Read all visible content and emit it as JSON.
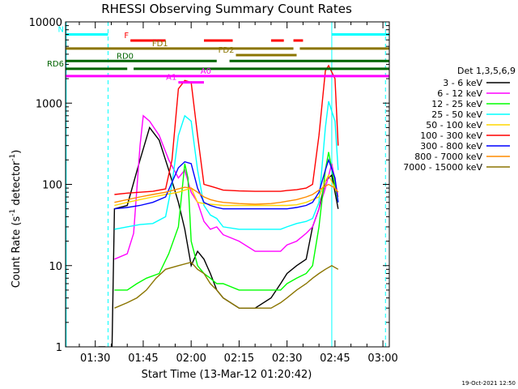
{
  "chart_data": {
    "type": "line",
    "title": "RHESSI Observing Summary Count Rates",
    "xlabel": "Start Time (13-Mar-12 01:20:42)",
    "ylabel_main": "Count Rate (s",
    "ylabel_sup1": "-1",
    "ylabel_mid": " detector",
    "ylabel_sup2": "-1",
    "ylabel_end": ")",
    "yscale": "log",
    "ylim": [
      1,
      10000
    ],
    "xlim_minutes": [
      80.7,
      182
    ],
    "y_ticks": [
      {
        "value": 1,
        "label": "1"
      },
      {
        "value": 10,
        "label": "10"
      },
      {
        "value": 100,
        "label": "100"
      },
      {
        "value": 1000,
        "label": "1000"
      },
      {
        "value": 10000,
        "label": "10000"
      }
    ],
    "x_ticks": [
      {
        "minute": 90,
        "label": "01:30"
      },
      {
        "minute": 105,
        "label": "01:45"
      },
      {
        "minute": 120,
        "label": "02:00"
      },
      {
        "minute": 135,
        "label": "02:15"
      },
      {
        "minute": 150,
        "label": "02:30"
      },
      {
        "minute": 165,
        "label": "02:45"
      },
      {
        "minute": 180,
        "label": "03:00"
      }
    ],
    "legend_title": "Det 1,3,5,6,9",
    "legend_position": "right",
    "series": [
      {
        "name": "3 - 6 keV",
        "color": "#000000",
        "points": [
          [
            91,
            1
          ],
          [
            93,
            1
          ],
          [
            95,
            0.3
          ],
          [
            96,
            50
          ],
          [
            100,
            55
          ],
          [
            104,
            200
          ],
          [
            107,
            500
          ],
          [
            110,
            350
          ],
          [
            113,
            150
          ],
          [
            116,
            60
          ],
          [
            118,
            28
          ],
          [
            120,
            10
          ],
          [
            122,
            15
          ],
          [
            124,
            12
          ],
          [
            126,
            8
          ],
          [
            128,
            5
          ],
          [
            130,
            4
          ],
          [
            135,
            3
          ],
          [
            140,
            3
          ],
          [
            145,
            4
          ],
          [
            148,
            6
          ],
          [
            150,
            8
          ],
          [
            153,
            10
          ],
          [
            156,
            12
          ],
          [
            158,
            30
          ],
          [
            160,
            50
          ],
          [
            162,
            110
          ],
          [
            164,
            130
          ],
          [
            166,
            50
          ]
        ]
      },
      {
        "name": "6 - 12 keV",
        "color": "#ff00ff",
        "points": [
          [
            96,
            12
          ],
          [
            100,
            14
          ],
          [
            102,
            25
          ],
          [
            104,
            300
          ],
          [
            105,
            700
          ],
          [
            107,
            600
          ],
          [
            110,
            400
          ],
          [
            113,
            200
          ],
          [
            116,
            120
          ],
          [
            118,
            150
          ],
          [
            120,
            80
          ],
          [
            122,
            60
          ],
          [
            124,
            35
          ],
          [
            126,
            28
          ],
          [
            128,
            30
          ],
          [
            130,
            24
          ],
          [
            135,
            20
          ],
          [
            140,
            15
          ],
          [
            145,
            15
          ],
          [
            148,
            15
          ],
          [
            150,
            18
          ],
          [
            153,
            20
          ],
          [
            156,
            25
          ],
          [
            158,
            30
          ],
          [
            160,
            50
          ],
          [
            162,
            90
          ],
          [
            164,
            180
          ],
          [
            166,
            70
          ]
        ]
      },
      {
        "name": "12 - 25 keV",
        "color": "#00ff00",
        "points": [
          [
            96,
            5
          ],
          [
            100,
            5
          ],
          [
            103,
            6
          ],
          [
            106,
            7
          ],
          [
            110,
            8
          ],
          [
            113,
            14
          ],
          [
            116,
            30
          ],
          [
            118,
            180
          ],
          [
            119,
            120
          ],
          [
            120,
            20
          ],
          [
            122,
            10
          ],
          [
            124,
            8
          ],
          [
            126,
            7
          ],
          [
            128,
            6
          ],
          [
            130,
            6
          ],
          [
            135,
            5
          ],
          [
            140,
            5
          ],
          [
            145,
            5
          ],
          [
            148,
            5
          ],
          [
            150,
            6
          ],
          [
            153,
            7
          ],
          [
            156,
            8
          ],
          [
            158,
            10
          ],
          [
            160,
            30
          ],
          [
            162,
            150
          ],
          [
            163,
            250
          ],
          [
            166,
            60
          ]
        ]
      },
      {
        "name": "25 - 50 keV",
        "color": "#00ffff",
        "points": [
          [
            96,
            28
          ],
          [
            100,
            30
          ],
          [
            104,
            32
          ],
          [
            108,
            33
          ],
          [
            112,
            40
          ],
          [
            114,
            100
          ],
          [
            116,
            400
          ],
          [
            118,
            700
          ],
          [
            120,
            600
          ],
          [
            122,
            150
          ],
          [
            124,
            55
          ],
          [
            126,
            42
          ],
          [
            128,
            38
          ],
          [
            130,
            30
          ],
          [
            135,
            28
          ],
          [
            140,
            28
          ],
          [
            145,
            28
          ],
          [
            148,
            28
          ],
          [
            150,
            30
          ],
          [
            153,
            33
          ],
          [
            156,
            35
          ],
          [
            158,
            38
          ],
          [
            160,
            60
          ],
          [
            162,
            500
          ],
          [
            163,
            1050
          ],
          [
            165,
            600
          ],
          [
            166,
            150
          ]
        ]
      },
      {
        "name": "50 - 100 keV",
        "color": "#ffd700",
        "points": [
          [
            96,
            55
          ],
          [
            100,
            60
          ],
          [
            104,
            65
          ],
          [
            108,
            70
          ],
          [
            112,
            75
          ],
          [
            116,
            80
          ],
          [
            118,
            85
          ],
          [
            120,
            90
          ],
          [
            122,
            60
          ],
          [
            124,
            58
          ],
          [
            126,
            57
          ],
          [
            128,
            56
          ],
          [
            130,
            55
          ],
          [
            135,
            55
          ],
          [
            140,
            55
          ],
          [
            145,
            55
          ],
          [
            148,
            55
          ],
          [
            150,
            55
          ],
          [
            153,
            56
          ],
          [
            156,
            60
          ],
          [
            158,
            65
          ],
          [
            160,
            70
          ],
          [
            162,
            110
          ],
          [
            163,
            130
          ],
          [
            165,
            90
          ],
          [
            166,
            70
          ]
        ]
      },
      {
        "name": "100 - 300 keV",
        "color": "#ff0000",
        "points": [
          [
            96,
            75
          ],
          [
            100,
            78
          ],
          [
            104,
            80
          ],
          [
            108,
            82
          ],
          [
            112,
            88
          ],
          [
            114,
            200
          ],
          [
            116,
            1500
          ],
          [
            118,
            1900
          ],
          [
            120,
            1800
          ],
          [
            122,
            400
          ],
          [
            124,
            100
          ],
          [
            126,
            95
          ],
          [
            128,
            90
          ],
          [
            130,
            85
          ],
          [
            135,
            83
          ],
          [
            140,
            82
          ],
          [
            145,
            82
          ],
          [
            148,
            82
          ],
          [
            150,
            84
          ],
          [
            153,
            86
          ],
          [
            156,
            90
          ],
          [
            158,
            100
          ],
          [
            160,
            400
          ],
          [
            162,
            2500
          ],
          [
            163,
            2900
          ],
          [
            165,
            2000
          ],
          [
            166,
            300
          ]
        ]
      },
      {
        "name": "300 - 800 keV",
        "color": "#0000ff",
        "points": [
          [
            96,
            50
          ],
          [
            100,
            52
          ],
          [
            104,
            55
          ],
          [
            108,
            60
          ],
          [
            112,
            70
          ],
          [
            116,
            160
          ],
          [
            118,
            190
          ],
          [
            120,
            180
          ],
          [
            122,
            90
          ],
          [
            124,
            60
          ],
          [
            126,
            55
          ],
          [
            128,
            52
          ],
          [
            130,
            50
          ],
          [
            135,
            50
          ],
          [
            140,
            50
          ],
          [
            145,
            50
          ],
          [
            148,
            50
          ],
          [
            150,
            50
          ],
          [
            153,
            52
          ],
          [
            156,
            55
          ],
          [
            158,
            60
          ],
          [
            160,
            80
          ],
          [
            162,
            150
          ],
          [
            163,
            200
          ],
          [
            165,
            120
          ],
          [
            166,
            60
          ]
        ]
      },
      {
        "name": "800 - 7000 keV",
        "color": "#ff8c00",
        "points": [
          [
            96,
            60
          ],
          [
            100,
            65
          ],
          [
            104,
            70
          ],
          [
            108,
            75
          ],
          [
            112,
            80
          ],
          [
            116,
            88
          ],
          [
            118,
            92
          ],
          [
            120,
            90
          ],
          [
            122,
            80
          ],
          [
            124,
            70
          ],
          [
            126,
            65
          ],
          [
            128,
            62
          ],
          [
            130,
            60
          ],
          [
            135,
            58
          ],
          [
            140,
            57
          ],
          [
            145,
            58
          ],
          [
            148,
            60
          ],
          [
            150,
            62
          ],
          [
            153,
            65
          ],
          [
            156,
            70
          ],
          [
            158,
            75
          ],
          [
            160,
            85
          ],
          [
            162,
            95
          ],
          [
            163,
            100
          ],
          [
            165,
            90
          ],
          [
            166,
            80
          ]
        ]
      },
      {
        "name": "7000 - 15000 keV",
        "color": "#8b7500",
        "points": [
          [
            96,
            3
          ],
          [
            100,
            3.5
          ],
          [
            103,
            4
          ],
          [
            106,
            5
          ],
          [
            109,
            7
          ],
          [
            112,
            9
          ],
          [
            116,
            10
          ],
          [
            120,
            11
          ],
          [
            122,
            9
          ],
          [
            124,
            8
          ],
          [
            126,
            6
          ],
          [
            128,
            5
          ],
          [
            130,
            4
          ],
          [
            135,
            3
          ],
          [
            140,
            3
          ],
          [
            145,
            3
          ],
          [
            148,
            3.5
          ],
          [
            150,
            4
          ],
          [
            153,
            5
          ],
          [
            156,
            6
          ],
          [
            158,
            7
          ],
          [
            160,
            8
          ],
          [
            162,
            9
          ],
          [
            164,
            10
          ],
          [
            166,
            9
          ]
        ]
      }
    ],
    "flag_bars": [
      {
        "label": "N",
        "color": "#00ffff",
        "level": 7000,
        "segments": [
          [
            80.7,
            94
          ],
          [
            164,
            182
          ]
        ]
      },
      {
        "label": "F",
        "color": "#ff0000",
        "level": 5900,
        "segments": [
          [
            101,
            112
          ],
          [
            124,
            133
          ],
          [
            145,
            149
          ],
          [
            152,
            155
          ]
        ]
      },
      {
        "label": "FD1",
        "color": "#8b7500",
        "level": 4700,
        "segments": [
          [
            80.7,
            152
          ],
          [
            154,
            182
          ]
        ]
      },
      {
        "label": "FD2",
        "color": "#8b7500",
        "level": 3900,
        "segments": [
          [
            134,
            153
          ]
        ]
      },
      {
        "label": "RD0",
        "color": "#006400",
        "level": 3300,
        "segments": [
          [
            80.7,
            128
          ],
          [
            132,
            182
          ]
        ]
      },
      {
        "label": "RD6",
        "color": "#006400",
        "level": 2650,
        "segments": [
          [
            80.7,
            100
          ],
          [
            102,
            182
          ]
        ]
      },
      {
        "label": "A0",
        "color": "#ff00ff",
        "level": 2150,
        "segments": [
          [
            80.7,
            182
          ]
        ]
      },
      {
        "label": "A1",
        "color": "#ff00ff",
        "level": 1800,
        "segments": [
          [
            116,
            124
          ]
        ]
      }
    ],
    "vertical_lines": [
      {
        "minute": 80.9,
        "color": "#00ffff",
        "style": "solid"
      },
      {
        "minute": 94,
        "color": "#00ffff",
        "style": "dashed"
      },
      {
        "minute": 164,
        "color": "#00ffff",
        "style": "solid"
      },
      {
        "minute": 180.8,
        "color": "#00ffff",
        "style": "dashed"
      }
    ]
  },
  "footer_date": "19-Oct-2021 12:50"
}
